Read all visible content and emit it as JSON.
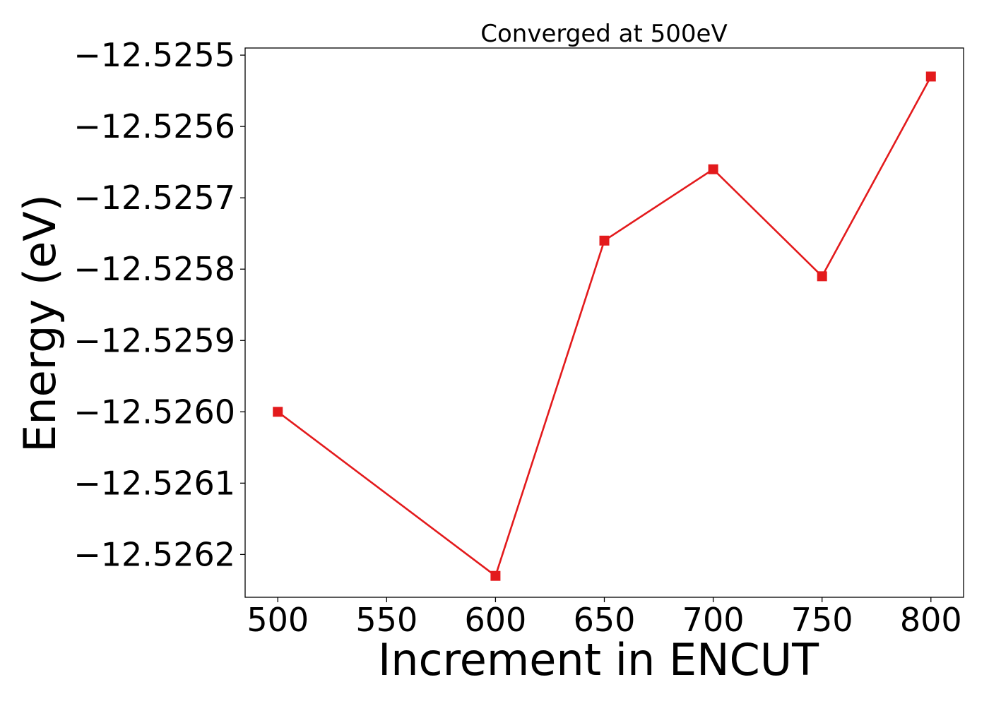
{
  "chart_data": {
    "type": "line",
    "title": "Converged at 500eV",
    "xlabel": "Increment in ENCUT",
    "ylabel": "Energy (eV)",
    "xlim": [
      485,
      815
    ],
    "ylim": [
      -12.52626,
      -12.52549
    ],
    "x_ticks": [
      500,
      550,
      600,
      650,
      700,
      750,
      800
    ],
    "y_ticks": [
      -12.5255,
      -12.5256,
      -12.5257,
      -12.5258,
      -12.5259,
      -12.526,
      -12.5261,
      -12.5262
    ],
    "y_tick_labels": [
      "−12.5255",
      "−12.5256",
      "−12.5257",
      "−12.5258",
      "−12.5259",
      "−12.5260",
      "−12.5261",
      "−12.5262"
    ],
    "grid": false,
    "series": [
      {
        "color": "#e31a1c",
        "marker": "square",
        "x": [
          500,
          600,
          650,
          700,
          750,
          800
        ],
        "y": [
          -12.526,
          -12.52623,
          -12.52576,
          -12.52566,
          -12.52581,
          -12.52553
        ]
      }
    ]
  }
}
